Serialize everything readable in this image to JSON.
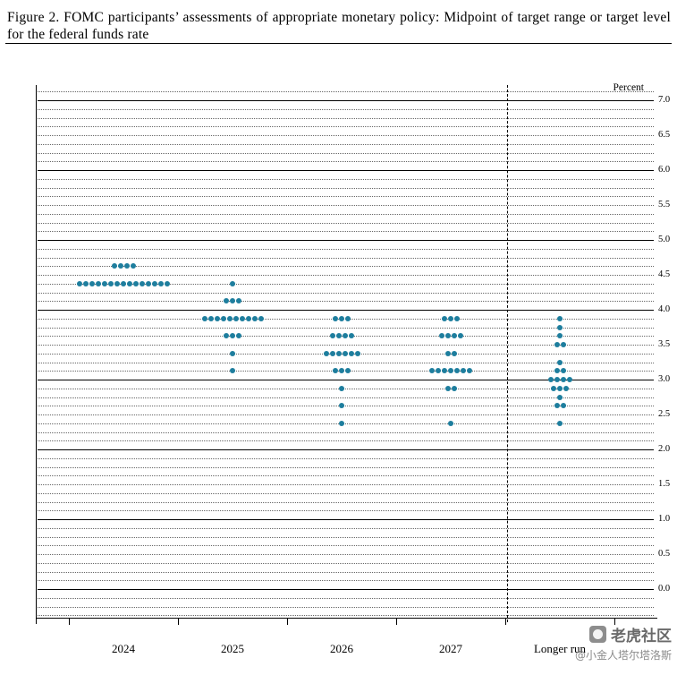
{
  "figure": {
    "title": "Figure 2.  FOMC participants’ assessments of appropriate monetary policy: Midpoint of target range or target level for the federal funds rate"
  },
  "chart": {
    "percent_label": "Percent",
    "y_axis_labels": [
      "7.0",
      "6.5",
      "6.0",
      "5.5",
      "5.0",
      "4.5",
      "4.0",
      "3.5",
      "3.0",
      "2.5",
      "2.0",
      "1.5",
      "1.0",
      "0.5",
      "0.0"
    ]
  },
  "chart_data": {
    "type": "scatter",
    "variant": "fomc_dot_plot",
    "title": "FOMC participants’ assessments of appropriate monetary policy: Midpoint of target range or target level for the federal funds rate",
    "xlabel": "",
    "ylabel": "Percent",
    "ylim": [
      0.0,
      7.0
    ],
    "y_tick_step": 0.5,
    "grid": "solid horizontal lines at whole percents, dotted lines at each one-eighth point",
    "separator": "vertical dashed line between 2027 and Longer run",
    "categories": [
      "2024",
      "2025",
      "2026",
      "2027",
      "Longer run"
    ],
    "series": [
      {
        "category": "2024",
        "dots": {
          "4.625": 4,
          "4.375": 15
        }
      },
      {
        "category": "2025",
        "dots": {
          "4.375": 1,
          "4.125": 3,
          "3.875": 10,
          "3.625": 3,
          "3.375": 1,
          "3.125": 1
        }
      },
      {
        "category": "2026",
        "dots": {
          "3.875": 3,
          "3.625": 4,
          "3.375": 6,
          "3.125": 3,
          "2.875": 1,
          "2.625": 1,
          "2.375": 1
        }
      },
      {
        "category": "2027",
        "dots": {
          "3.875": 3,
          "3.625": 4,
          "3.375": 2,
          "3.125": 7,
          "2.875": 2,
          "2.375": 1
        }
      },
      {
        "category": "Longer run",
        "dots": {
          "3.875": 1,
          "3.75": 1,
          "3.625": 1,
          "3.5": 2,
          "3.25": 1,
          "3.125": 2,
          "3.0": 4,
          "2.875": 3,
          "2.75": 1,
          "2.625": 2,
          "2.375": 1
        }
      }
    ]
  },
  "watermark": {
    "brand": "老虎社区",
    "handle": "@小金人塔尔塔洛斯"
  },
  "colors": {
    "dot": "#1e7e9e",
    "axis": "#000000",
    "grid_dotted": "#666666"
  }
}
